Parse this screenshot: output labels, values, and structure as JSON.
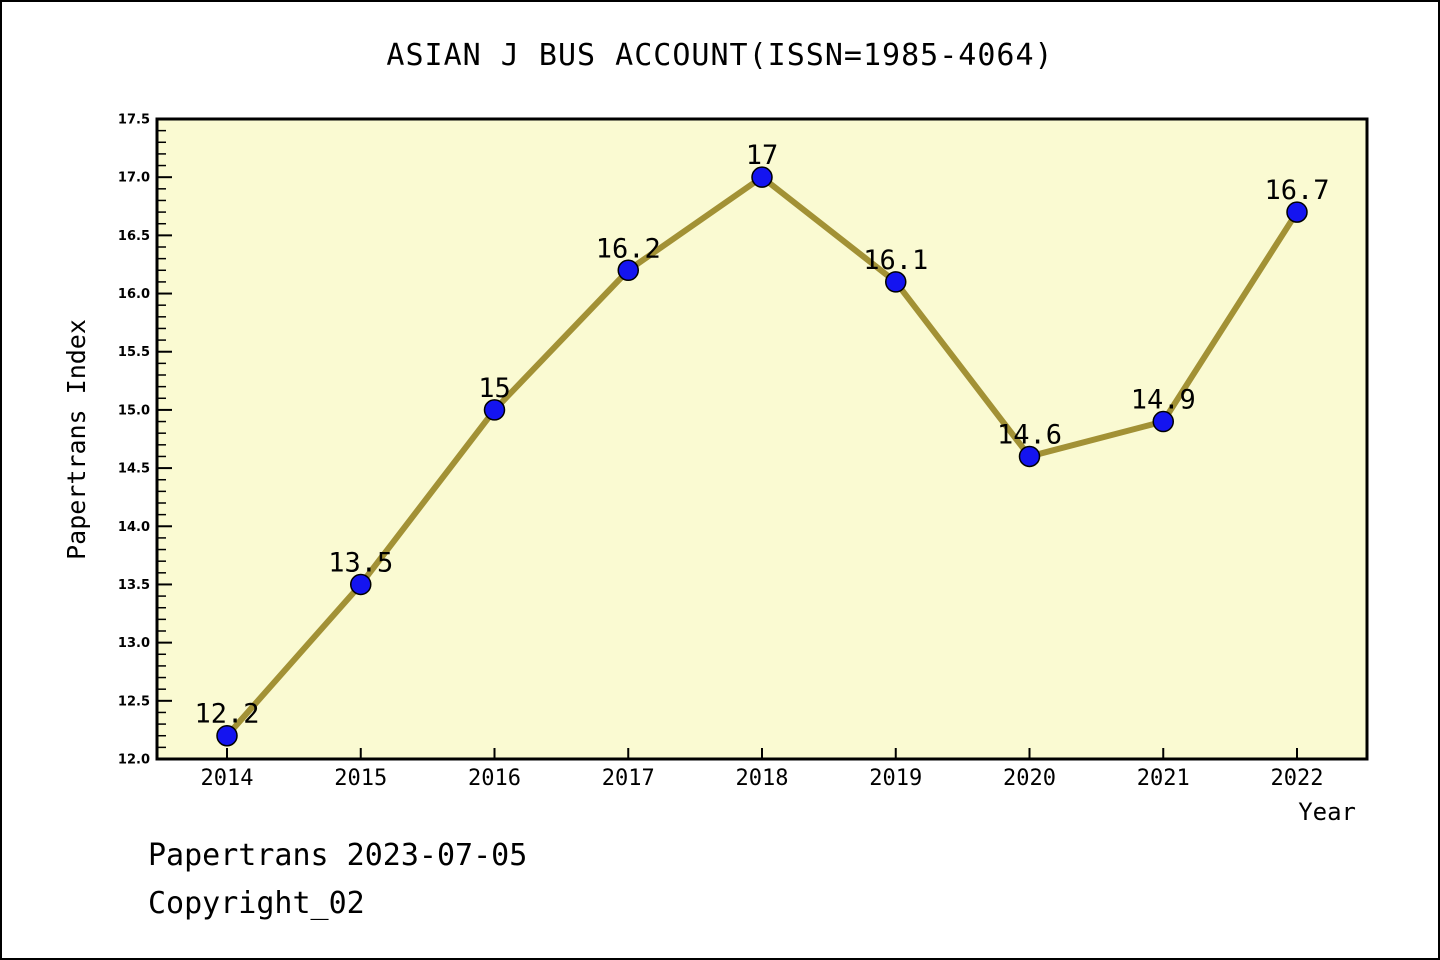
{
  "chart_data": {
    "type": "line",
    "title": "ASIAN J BUS ACCOUNT(ISSN=1985-4064)",
    "xlabel": "Year",
    "ylabel": "Papertrans Index",
    "x": [
      2014,
      2015,
      2016,
      2017,
      2018,
      2019,
      2020,
      2021,
      2022
    ],
    "values": [
      12.2,
      13.5,
      15,
      16.2,
      17,
      16.1,
      14.6,
      14.9,
      16.7
    ],
    "point_labels": [
      "12.2",
      "13.5",
      "15",
      "16.2",
      "17",
      "16.1",
      "14.6",
      "14.9",
      "16.7"
    ],
    "series_name": "Papertrans Index",
    "ylim": [
      12.0,
      17.5
    ],
    "ytick_step": 0.5,
    "ytick_minor_step": 0.1,
    "yticks": [
      "12.0",
      "12.5",
      "13.0",
      "13.5",
      "14.0",
      "14.5",
      "15.0",
      "15.5",
      "16.0",
      "16.5",
      "17.0",
      "17.5"
    ],
    "xticks": [
      "2014",
      "2015",
      "2016",
      "2017",
      "2018",
      "2019",
      "2020",
      "2021",
      "2022"
    ],
    "grid": false,
    "legend": "none",
    "tick_direction": "in",
    "colors": {
      "line": "#A29135",
      "marker": "#1414F0",
      "marker_edge": "#000000",
      "plot_background": "#FAFAD2",
      "figure_background": "#FFFFFF",
      "axis": "#000000",
      "text": "#000000"
    }
  },
  "footer": {
    "line1": "Papertrans 2023-07-05",
    "line2": "Copyright_02"
  }
}
